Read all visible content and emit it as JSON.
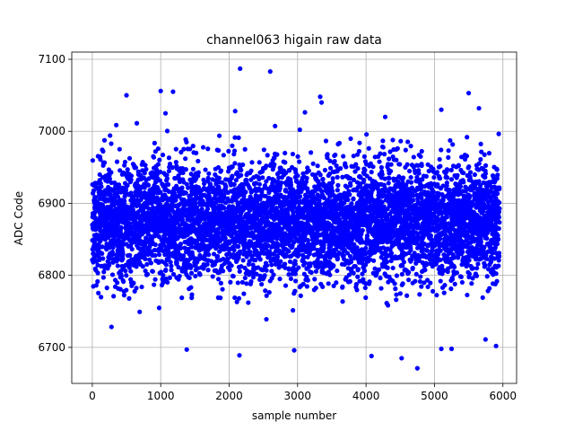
{
  "chart_data": {
    "type": "scatter",
    "title": "channel063 higain raw data",
    "xlabel": "sample number",
    "ylabel": "ADC Code",
    "xlim": [
      -300,
      6200
    ],
    "ylim": [
      6650,
      7110
    ],
    "xticks": [
      0,
      1000,
      2000,
      3000,
      4000,
      5000,
      6000
    ],
    "yticks": [
      6700,
      6800,
      6900,
      7000,
      7100
    ],
    "grid": true,
    "marker_color": "#0000ff",
    "series": [
      {
        "n_points": 6000,
        "x_range": [
          0,
          5950
        ],
        "approx_mean": 6875,
        "approx_std": 40,
        "outliers": [
          {
            "x": 2160,
            "y": 7087
          },
          {
            "x": 2600,
            "y": 7083
          },
          {
            "x": 1000,
            "y": 7056
          },
          {
            "x": 1180,
            "y": 7055
          },
          {
            "x": 5500,
            "y": 7053
          },
          {
            "x": 500,
            "y": 7050
          },
          {
            "x": 3330,
            "y": 7048
          },
          {
            "x": 3350,
            "y": 7040
          },
          {
            "x": 5650,
            "y": 7032
          },
          {
            "x": 5100,
            "y": 7030
          },
          {
            "x": 1070,
            "y": 7025
          },
          {
            "x": 4280,
            "y": 7020
          },
          {
            "x": 4080,
            "y": 6688
          },
          {
            "x": 4520,
            "y": 6685
          },
          {
            "x": 4750,
            "y": 6671
          },
          {
            "x": 2150,
            "y": 6689
          },
          {
            "x": 1380,
            "y": 6697
          },
          {
            "x": 2950,
            "y": 6696
          },
          {
            "x": 5100,
            "y": 6698
          },
          {
            "x": 5250,
            "y": 6698
          },
          {
            "x": 5900,
            "y": 6702
          }
        ]
      }
    ]
  }
}
